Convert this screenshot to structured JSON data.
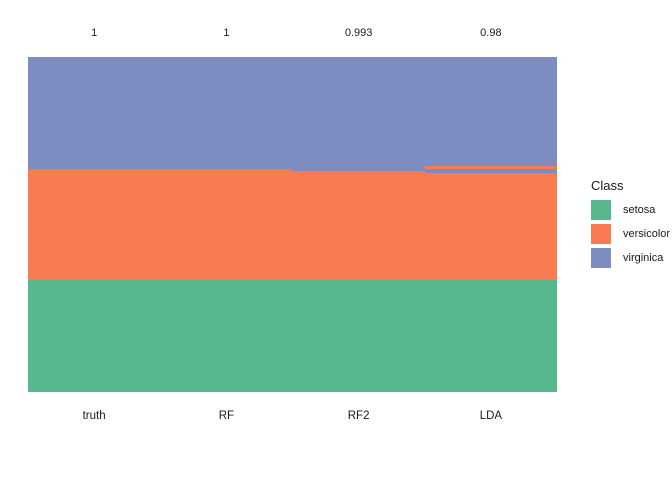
{
  "chart_data": {
    "type": "heatmap",
    "description": "Per-sample class assignments (150 iris samples, rows sorted by truth) compared across truth and three classifiers",
    "n_samples": 150,
    "columns": [
      "truth",
      "RF",
      "RF2",
      "LDA"
    ],
    "accuracy_labels": [
      "1",
      "1",
      "0.993",
      "0.98"
    ],
    "accuracies": [
      1,
      1,
      0.993,
      0.98
    ],
    "classes": [
      "setosa",
      "versicolor",
      "virginica"
    ],
    "colors": {
      "setosa": "#56B88C",
      "versicolor": "#F87B52",
      "virginica": "#7D8CC1"
    },
    "segments": {
      "truth": [
        {
          "class": "virginica",
          "count": 50
        },
        {
          "class": "versicolor",
          "count": 50
        },
        {
          "class": "setosa",
          "count": 50
        }
      ],
      "RF": [
        {
          "class": "virginica",
          "count": 50
        },
        {
          "class": "versicolor",
          "count": 50
        },
        {
          "class": "setosa",
          "count": 50
        }
      ],
      "RF2": [
        {
          "class": "virginica",
          "count": 51
        },
        {
          "class": "versicolor",
          "count": 49
        },
        {
          "class": "setosa",
          "count": 50
        }
      ],
      "LDA": [
        {
          "class": "virginica",
          "count": 49
        },
        {
          "class": "versicolor",
          "count": 1
        },
        {
          "class": "virginica",
          "count": 2
        },
        {
          "class": "versicolor",
          "count": 48
        },
        {
          "class": "setosa",
          "count": 50
        }
      ]
    },
    "legend": {
      "title": "Class",
      "entries": [
        "setosa",
        "versicolor",
        "virginica"
      ],
      "position": "right"
    },
    "xlabel": "",
    "ylabel": "",
    "grid": false
  }
}
